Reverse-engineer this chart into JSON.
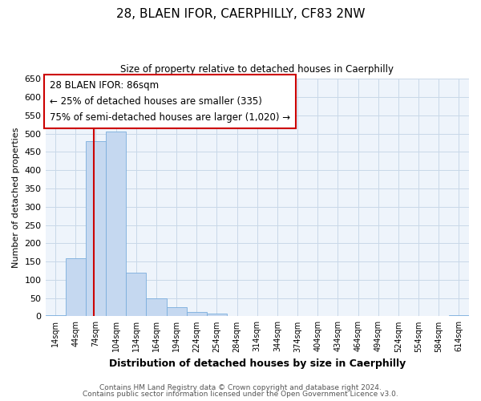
{
  "title": "28, BLAEN IFOR, CAERPHILLY, CF83 2NW",
  "subtitle": "Size of property relative to detached houses in Caerphilly",
  "xlabel": "Distribution of detached houses by size in Caerphilly",
  "ylabel": "Number of detached properties",
  "bar_values": [
    3,
    160,
    480,
    505,
    120,
    50,
    25,
    12,
    8,
    0,
    0,
    0,
    0,
    0,
    0,
    0,
    0,
    0,
    0,
    0,
    3
  ],
  "bin_labels": [
    "14sqm",
    "44sqm",
    "74sqm",
    "104sqm",
    "134sqm",
    "164sqm",
    "194sqm",
    "224sqm",
    "254sqm",
    "284sqm",
    "314sqm",
    "344sqm",
    "374sqm",
    "404sqm",
    "434sqm",
    "464sqm",
    "494sqm",
    "524sqm",
    "554sqm",
    "584sqm",
    "614sqm"
  ],
  "bin_starts": [
    14,
    44,
    74,
    104,
    134,
    164,
    194,
    224,
    254,
    284,
    314,
    344,
    374,
    404,
    434,
    464,
    494,
    524,
    554,
    584,
    614
  ],
  "bin_width": 30,
  "bar_color": "#c5d8f0",
  "bar_edge_color": "#7aaddd",
  "property_line_x": 86,
  "property_line_color": "#cc0000",
  "ylim": [
    0,
    650
  ],
  "yticks": [
    0,
    50,
    100,
    150,
    200,
    250,
    300,
    350,
    400,
    450,
    500,
    550,
    600,
    650
  ],
  "annotation_title": "28 BLAEN IFOR: 86sqm",
  "annotation_line1": "← 25% of detached houses are smaller (335)",
  "annotation_line2": "75% of semi-detached houses are larger (1,020) →",
  "footer_line1": "Contains HM Land Registry data © Crown copyright and database right 2024.",
  "footer_line2": "Contains public sector information licensed under the Open Government Licence v3.0.",
  "background_color": "#ffffff",
  "grid_color": "#c8d8e8",
  "plot_bg_color": "#eef4fb"
}
